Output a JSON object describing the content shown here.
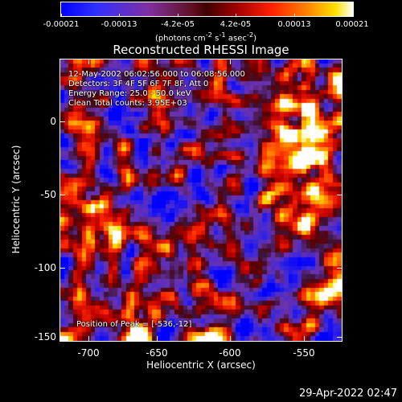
{
  "colorbar": {
    "ticks": [
      "-0.00021",
      "-0.00013",
      "-4.2e-05",
      "4.2e-05",
      "0.00013",
      "0.00021"
    ],
    "units_html": "(photons cm<sup>-2</sup> s<sup>-1</sup> asec<sup>-2</sup>)"
  },
  "plot": {
    "title": "Reconstructed RHESSI Image",
    "xlabel": "Heliocentric X (arcsec)",
    "ylabel": "Heliocentric Y (arcsec)",
    "x_ticks": [
      "-700",
      "-650",
      "-600",
      "-550"
    ],
    "y_ticks": [
      "0",
      "-50",
      "-100",
      "-150"
    ],
    "overlay": {
      "time_range": "12-May-2002 06:02:56.000 to 06:08:56.000",
      "detectors": "Detectors: 3F 4F 5F 6F 7F 8F, Att 0",
      "energy": "Energy Range: 25.0 - 50.0 keV",
      "counts": "Clean     Total counts: 3.95E+03",
      "peak": "Position of Peak = [-536,-12]"
    }
  },
  "footer": {
    "timestamp": "29-Apr-2022 02:47"
  }
}
